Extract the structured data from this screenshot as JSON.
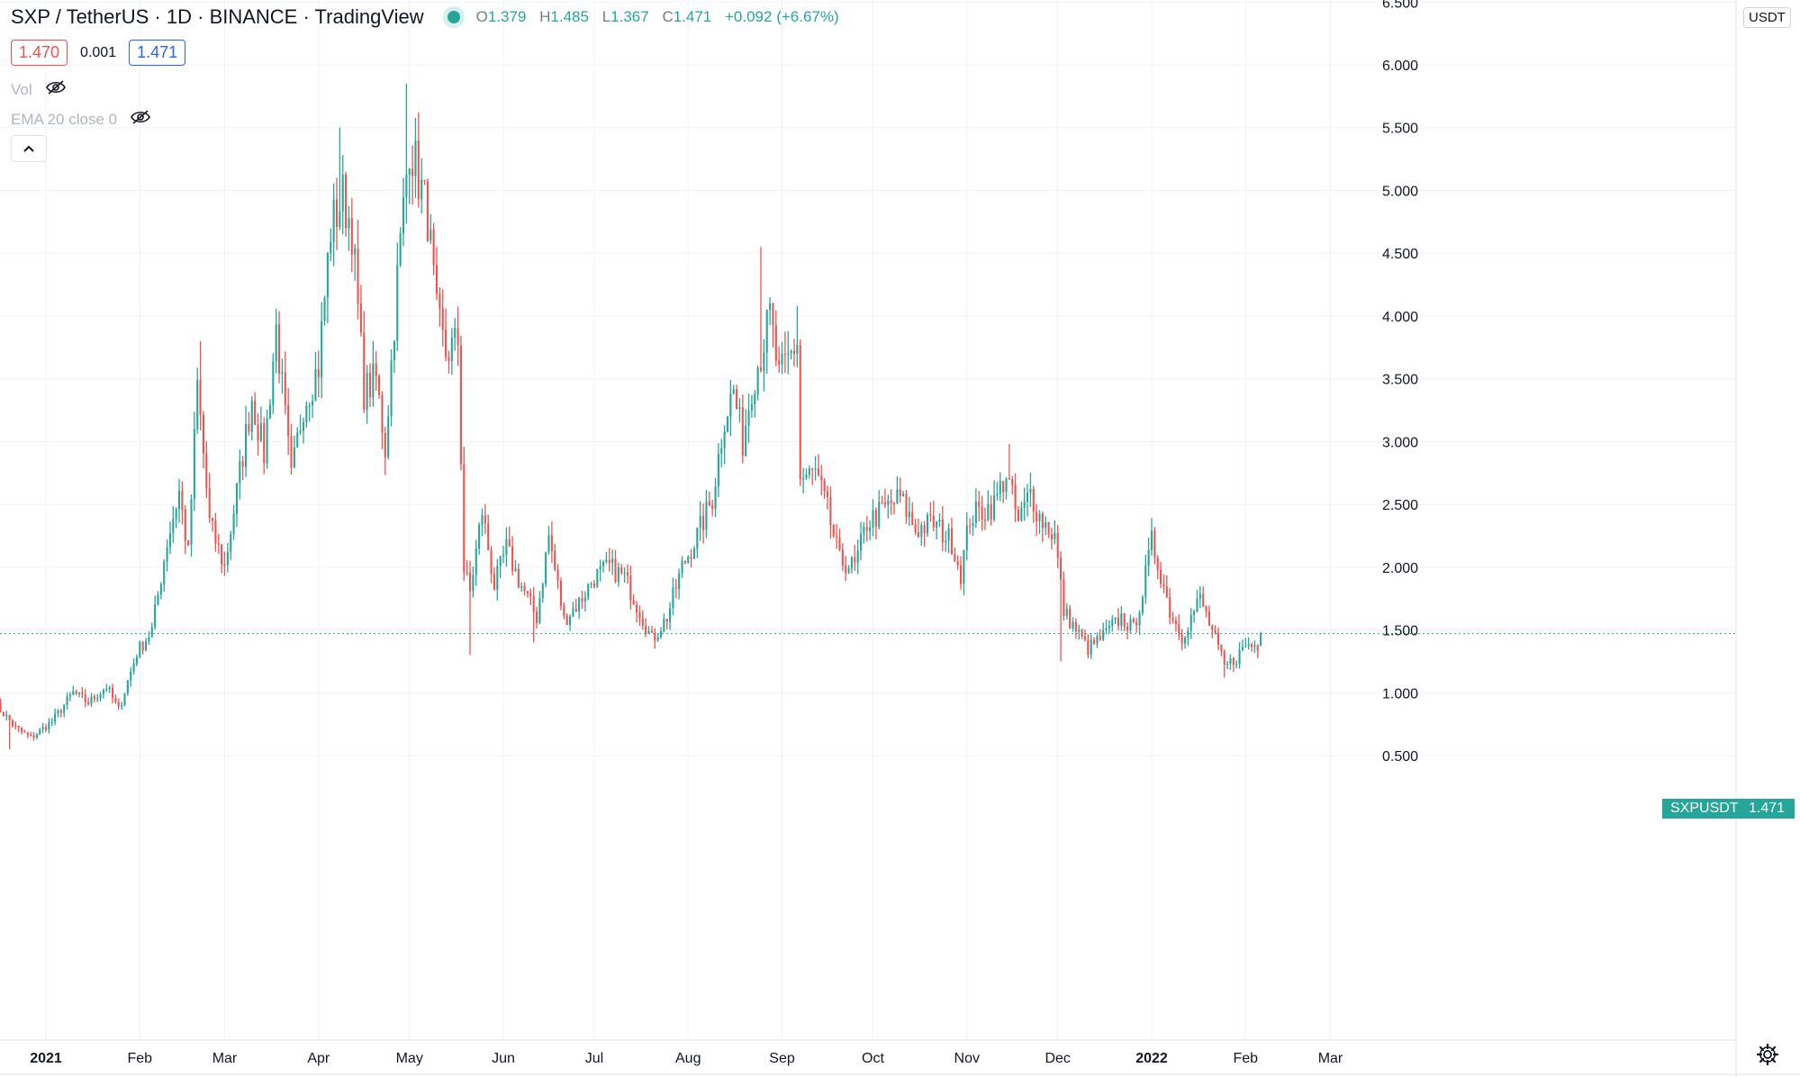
{
  "header": {
    "symbol": "SXP / TetherUS",
    "interval": "1D",
    "exchange": "BINANCE",
    "platform": "TradingView",
    "separator": "·",
    "ohlc": {
      "open_label": "O",
      "open": "1.379",
      "high_label": "H",
      "high": "1.485",
      "low_label": "L",
      "low": "1.367",
      "close_label": "C",
      "close": "1.471",
      "change": "+0.092 (+6.67%)"
    }
  },
  "quote": {
    "sell": "1.470",
    "spread": "0.001",
    "buy": "1.471"
  },
  "indicators": [
    {
      "label": "Vol",
      "icon": "eye-crossed-icon"
    },
    {
      "label": "EMA 20 close 0",
      "icon": "eye-crossed-icon"
    }
  ],
  "price_axis": {
    "unit": "USDT",
    "ticks": [
      "0.500",
      "1.000",
      "1.500",
      "2.000",
      "2.500",
      "3.000",
      "3.500",
      "4.000",
      "4.500",
      "5.000",
      "5.500",
      "6.000",
      "6.500"
    ]
  },
  "time_axis": {
    "labels": [
      "2021",
      "Feb",
      "Mar",
      "Apr",
      "May",
      "Jun",
      "Jul",
      "Aug",
      "Sep",
      "Oct",
      "Nov",
      "Dec",
      "2022",
      "Feb",
      "Mar"
    ]
  },
  "last_price": {
    "symbol": "SXPUSDT",
    "value": "1.471"
  },
  "colors": {
    "up": "#26a69a",
    "down": "#ef5350",
    "grid": "#f0f3fa"
  },
  "chart_data": {
    "type": "candlestick",
    "x_axis": "date",
    "y_unit": "USDT",
    "ylim": [
      0,
      6.5
    ],
    "grid": true,
    "start_date": "2020-12-15",
    "end_date": "2022-02-06",
    "anchors": [
      [
        "2020-12-15",
        0.92
      ],
      [
        "2020-12-22",
        0.72
      ],
      [
        "2020-12-27",
        0.64
      ],
      [
        "2021-01-03",
        0.77
      ],
      [
        "2021-01-10",
        1.0
      ],
      [
        "2021-01-15",
        0.92
      ],
      [
        "2021-01-21",
        1.05
      ],
      [
        "2021-01-25",
        0.86
      ],
      [
        "2021-01-31",
        1.32
      ],
      [
        "2021-02-05",
        1.5
      ],
      [
        "2021-02-10",
        2.2
      ],
      [
        "2021-02-14",
        2.6
      ],
      [
        "2021-02-17",
        2.1
      ],
      [
        "2021-02-20",
        3.45
      ],
      [
        "2021-02-24",
        2.35
      ],
      [
        "2021-03-01",
        2.0
      ],
      [
        "2021-03-05",
        2.6
      ],
      [
        "2021-03-10",
        3.35
      ],
      [
        "2021-03-14",
        2.9
      ],
      [
        "2021-03-18",
        3.9
      ],
      [
        "2021-03-23",
        2.7
      ],
      [
        "2021-03-27",
        3.3
      ],
      [
        "2021-04-01",
        3.6
      ],
      [
        "2021-04-05",
        4.7
      ],
      [
        "2021-04-09",
        4.95
      ],
      [
        "2021-04-12",
        4.7
      ],
      [
        "2021-04-16",
        3.4
      ],
      [
        "2021-04-20",
        3.5
      ],
      [
        "2021-04-23",
        2.95
      ],
      [
        "2021-04-27",
        4.3
      ],
      [
        "2021-05-01",
        5.4
      ],
      [
        "2021-05-04",
        5.1
      ],
      [
        "2021-05-07",
        4.8
      ],
      [
        "2021-05-10",
        4.0
      ],
      [
        "2021-05-13",
        3.7
      ],
      [
        "2021-05-17",
        3.8
      ],
      [
        "2021-05-19",
        1.98
      ],
      [
        "2021-05-21",
        1.8
      ],
      [
        "2021-05-25",
        2.45
      ],
      [
        "2021-05-29",
        1.85
      ],
      [
        "2021-06-02",
        2.15
      ],
      [
        "2021-06-06",
        1.9
      ],
      [
        "2021-06-12",
        1.6
      ],
      [
        "2021-06-16",
        2.25
      ],
      [
        "2021-06-21",
        1.58
      ],
      [
        "2021-06-26",
        1.72
      ],
      [
        "2021-07-01",
        1.92
      ],
      [
        "2021-07-06",
        2.0
      ],
      [
        "2021-07-11",
        1.92
      ],
      [
        "2021-07-16",
        1.65
      ],
      [
        "2021-07-20",
        1.42
      ],
      [
        "2021-07-25",
        1.6
      ],
      [
        "2021-07-30",
        2.0
      ],
      [
        "2021-08-04",
        2.25
      ],
      [
        "2021-08-09",
        2.55
      ],
      [
        "2021-08-13",
        3.2
      ],
      [
        "2021-08-16",
        3.4
      ],
      [
        "2021-08-19",
        3.0
      ],
      [
        "2021-08-22",
        3.45
      ],
      [
        "2021-08-25",
        3.7
      ],
      [
        "2021-08-28",
        4.0
      ],
      [
        "2021-08-31",
        3.5
      ],
      [
        "2021-09-03",
        3.65
      ],
      [
        "2021-09-06",
        3.8
      ],
      [
        "2021-09-07",
        2.7
      ],
      [
        "2021-09-12",
        2.75
      ],
      [
        "2021-09-16",
        2.45
      ],
      [
        "2021-09-20",
        2.05
      ],
      [
        "2021-09-25",
        2.0
      ],
      [
        "2021-09-29",
        2.35
      ],
      [
        "2021-10-04",
        2.45
      ],
      [
        "2021-10-10",
        2.55
      ],
      [
        "2021-10-15",
        2.3
      ],
      [
        "2021-10-21",
        2.35
      ],
      [
        "2021-10-27",
        2.2
      ],
      [
        "2021-10-30",
        1.95
      ],
      [
        "2021-11-02",
        2.4
      ],
      [
        "2021-11-10",
        2.5
      ],
      [
        "2021-11-14",
        2.75
      ],
      [
        "2021-11-18",
        2.35
      ],
      [
        "2021-11-22",
        2.6
      ],
      [
        "2021-11-25",
        2.4
      ],
      [
        "2021-11-30",
        2.25
      ],
      [
        "2021-12-03",
        1.65
      ],
      [
        "2021-12-07",
        1.5
      ],
      [
        "2021-12-11",
        1.35
      ],
      [
        "2021-12-16",
        1.45
      ],
      [
        "2021-12-22",
        1.6
      ],
      [
        "2021-12-26",
        1.5
      ],
      [
        "2021-12-29",
        1.8
      ],
      [
        "2022-01-01",
        2.2
      ],
      [
        "2022-01-04",
        1.95
      ],
      [
        "2022-01-07",
        1.65
      ],
      [
        "2022-01-11",
        1.45
      ],
      [
        "2022-01-14",
        1.6
      ],
      [
        "2022-01-17",
        1.75
      ],
      [
        "2022-01-20",
        1.55
      ],
      [
        "2022-01-23",
        1.35
      ],
      [
        "2022-01-25",
        1.2
      ],
      [
        "2022-01-29",
        1.28
      ],
      [
        "2022-02-01",
        1.38
      ],
      [
        "2022-02-05",
        1.38
      ],
      [
        "2022-02-06",
        1.47
      ]
    ],
    "spikes": [
      [
        "2020-12-20",
        0.55
      ],
      [
        "2021-02-21",
        3.8
      ],
      [
        "2021-04-02",
        4.1
      ],
      [
        "2021-04-08",
        5.5
      ],
      [
        "2021-04-30",
        5.85
      ],
      [
        "2021-05-21",
        1.3
      ],
      [
        "2021-06-11",
        1.4
      ],
      [
        "2021-07-21",
        1.35
      ],
      [
        "2021-08-25",
        4.55
      ],
      [
        "2021-09-06",
        4.08
      ],
      [
        "2021-11-15",
        2.98
      ],
      [
        "2021-12-02",
        1.25
      ],
      [
        "2022-01-01",
        2.35
      ],
      [
        "2022-01-25",
        1.12
      ]
    ],
    "last": {
      "open": 1.379,
      "high": 1.485,
      "low": 1.367,
      "close": 1.471
    }
  }
}
